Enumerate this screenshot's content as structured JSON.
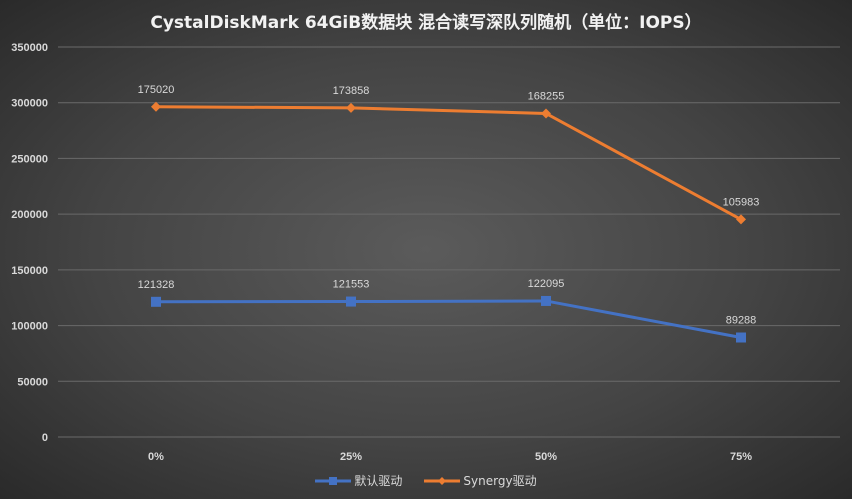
{
  "chart_data": {
    "type": "line",
    "stacked": true,
    "title": "CystalDiskMark 64GiB数据块 混合读写深队列随机（单位：IOPS）",
    "categories": [
      "0%",
      "25%",
      "50%",
      "75%"
    ],
    "ylim": [
      0,
      350000
    ],
    "yticks": [
      0,
      50000,
      100000,
      150000,
      200000,
      250000,
      300000,
      350000
    ],
    "grid": true,
    "legend_position": "bottom",
    "series": [
      {
        "name": "默认驱动",
        "values": [
          121328,
          121553,
          122095,
          89288
        ],
        "color": "#4472c4",
        "marker": "square"
      },
      {
        "name": "Synergy驱动",
        "values": [
          175020,
          173858,
          168255,
          105983
        ],
        "color": "#ed7d31",
        "marker": "diamond"
      }
    ]
  }
}
